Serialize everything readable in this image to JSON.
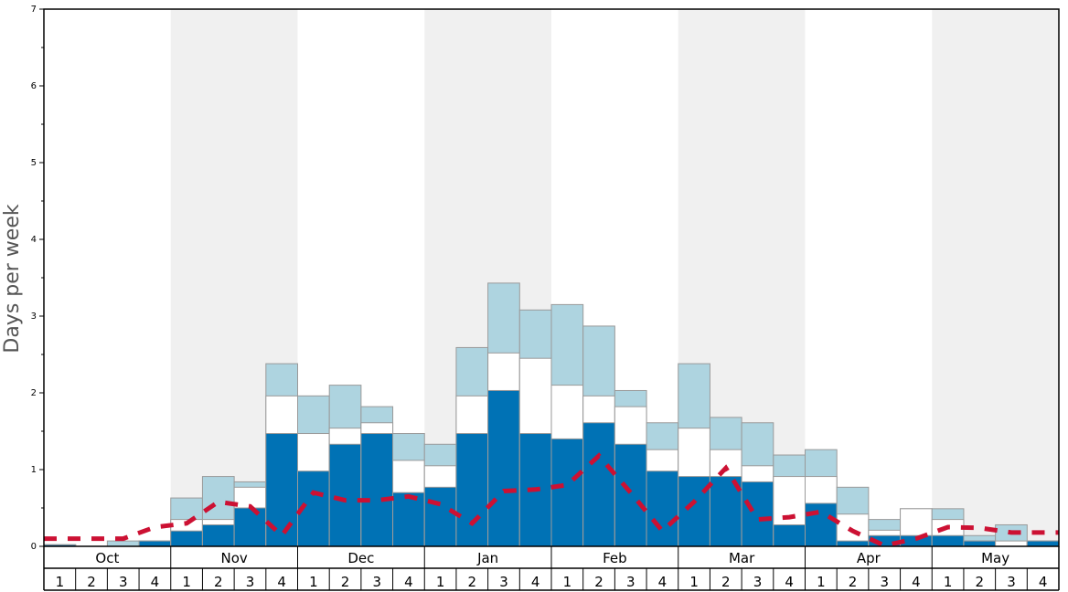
{
  "chart_data": {
    "type": "bar",
    "ylabel": "Days per week",
    "ylim": [
      0,
      7
    ],
    "y_ticks": [
      "0",
      "1",
      "2",
      "3",
      "4",
      "5",
      "6",
      "7"
    ],
    "months": [
      "Oct",
      "Nov",
      "Dec",
      "Jan",
      "Feb",
      "Mar",
      "Apr",
      "May"
    ],
    "week_labels": [
      "1",
      "2",
      "3",
      "4"
    ],
    "colors": {
      "dark": "#0072b5",
      "mid": "#ffffff",
      "light": "#aed4e0",
      "line": "#cc1133",
      "shade": "#f0f0f0"
    },
    "series": [
      {
        "values": [
          0.02,
          0.0,
          0.0,
          0.07,
          0.2,
          0.28,
          0.5,
          1.47,
          0.98,
          1.33,
          1.47,
          0.7,
          0.77,
          1.47,
          2.03,
          1.47,
          1.4,
          1.61,
          1.33,
          0.98,
          0.91,
          0.91,
          0.84,
          0.28,
          0.56,
          0.07,
          0.14,
          0.14,
          0.14,
          0.07,
          0.0,
          0.07
        ]
      },
      {
        "values": [
          0.02,
          0.0,
          0.0,
          0.07,
          0.35,
          0.35,
          0.77,
          1.96,
          1.47,
          1.54,
          1.61,
          1.12,
          1.05,
          1.96,
          2.52,
          2.45,
          2.1,
          1.96,
          1.82,
          1.26,
          1.54,
          1.26,
          1.05,
          0.91,
          0.91,
          0.42,
          0.21,
          0.49,
          0.35,
          0.07,
          0.07,
          0.07
        ]
      },
      {
        "values": [
          0.02,
          0.0,
          0.07,
          0.07,
          0.63,
          0.91,
          0.84,
          2.38,
          1.96,
          2.1,
          1.82,
          1.47,
          1.33,
          2.59,
          3.43,
          3.08,
          3.15,
          2.87,
          2.03,
          1.61,
          2.38,
          1.68,
          1.61,
          1.19,
          1.26,
          0.77,
          0.35,
          0.49,
          0.49,
          0.14,
          0.28,
          0.07
        ]
      },
      {
        "values": [
          0.1,
          0.1,
          0.1,
          0.25,
          0.3,
          0.58,
          0.52,
          0.14,
          0.7,
          0.6,
          0.6,
          0.65,
          0.55,
          0.3,
          0.72,
          0.74,
          0.8,
          1.18,
          0.7,
          0.2,
          0.58,
          1.02,
          0.35,
          0.38,
          0.45,
          0.2,
          0.01,
          0.1,
          0.25,
          0.24,
          0.18,
          0.18
        ]
      }
    ]
  }
}
